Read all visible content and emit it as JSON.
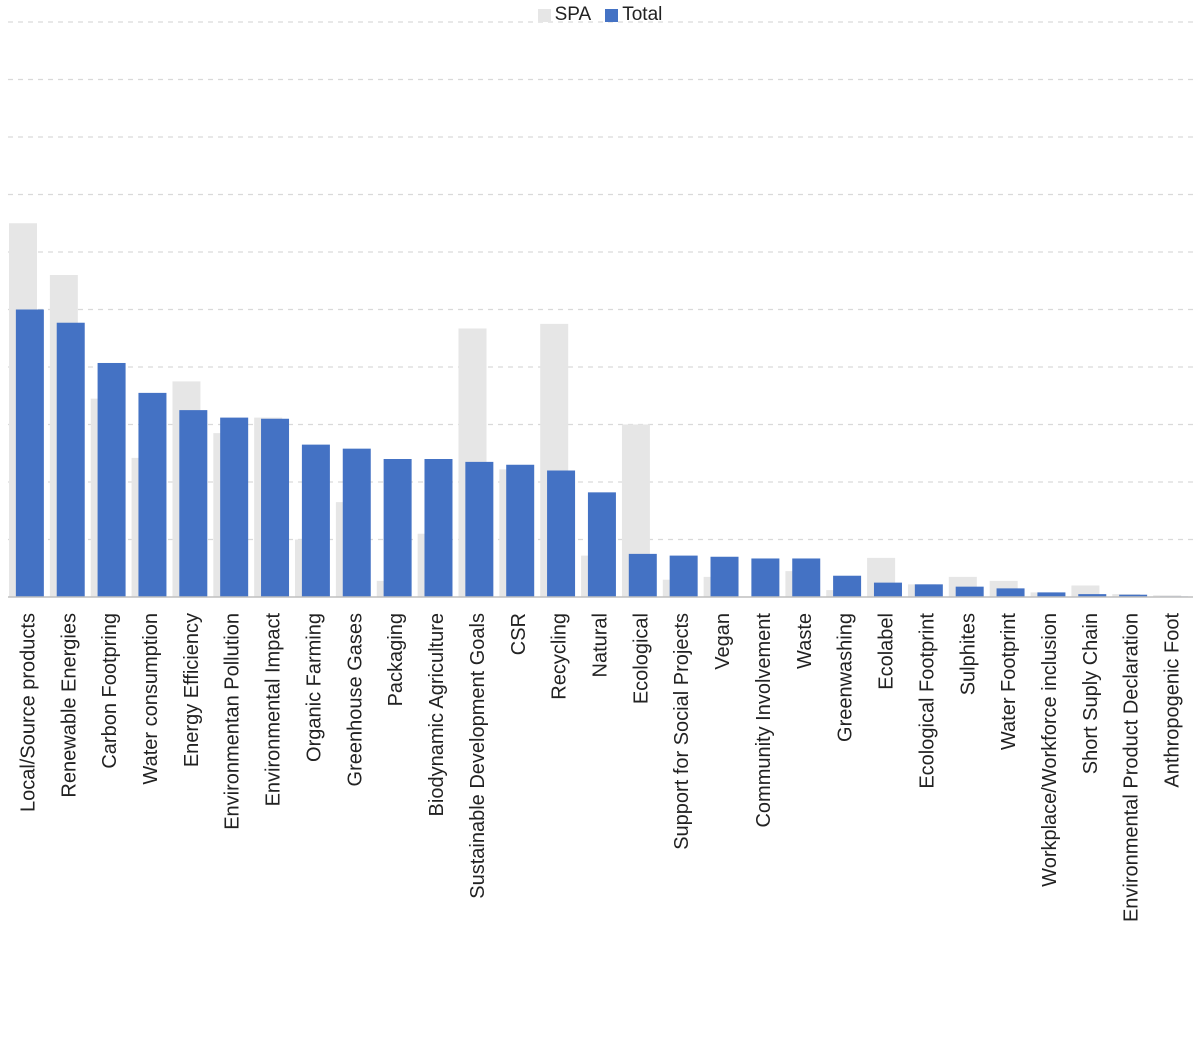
{
  "colors": {
    "spa": "#e6e6e6",
    "total": "#4472c4",
    "grid": "#d9d9d9",
    "axis": "#bfbfbf"
  },
  "chart_data": {
    "type": "bar",
    "title": "",
    "xlabel": "",
    "ylabel": "",
    "ylim": [
      0,
      10
    ],
    "grid": true,
    "legend": "top-center",
    "categories": [
      "Local/Source products",
      "Renewable Energies",
      "Carbon Footpring",
      "Water consumption",
      "Energy Efficiency",
      "Environmentan Pollution",
      "Environmental Impact",
      "Organic Farming",
      "Greenhouse Gases",
      "Packaging",
      "Biodynamic Agriculture",
      "Sustainable Development Goals",
      "CSR",
      "Recycling",
      "Natural",
      "Ecological",
      "Support for Social Projects",
      "Vegan",
      "Community Involvement",
      "Waste",
      "Greenwashing",
      "Ecolabel",
      "Ecological Footprint",
      "Sulphites",
      "Water Footprint",
      "Workplace/Workforce inclusion",
      "Short Suply Chain",
      "Environmental Product Declaration",
      "Anthropogenic Foot"
    ],
    "series": [
      {
        "name": "SPA",
        "values": [
          6.5,
          5.6,
          3.45,
          2.42,
          3.75,
          2.85,
          3.12,
          1.0,
          1.65,
          0.28,
          1.1,
          4.67,
          2.22,
          4.75,
          0.72,
          3.0,
          0.3,
          0.35,
          0.0,
          0.45,
          0.12,
          0.68,
          0.22,
          0.35,
          0.28,
          0.08,
          0.2,
          0.05,
          0.03
        ]
      },
      {
        "name": "Total",
        "values": [
          5.0,
          4.77,
          4.07,
          3.55,
          3.25,
          3.12,
          3.1,
          2.65,
          2.58,
          2.4,
          2.4,
          2.35,
          2.3,
          2.2,
          1.82,
          0.75,
          0.72,
          0.7,
          0.67,
          0.67,
          0.37,
          0.25,
          0.22,
          0.18,
          0.15,
          0.08,
          0.05,
          0.04,
          0.01
        ]
      }
    ]
  }
}
